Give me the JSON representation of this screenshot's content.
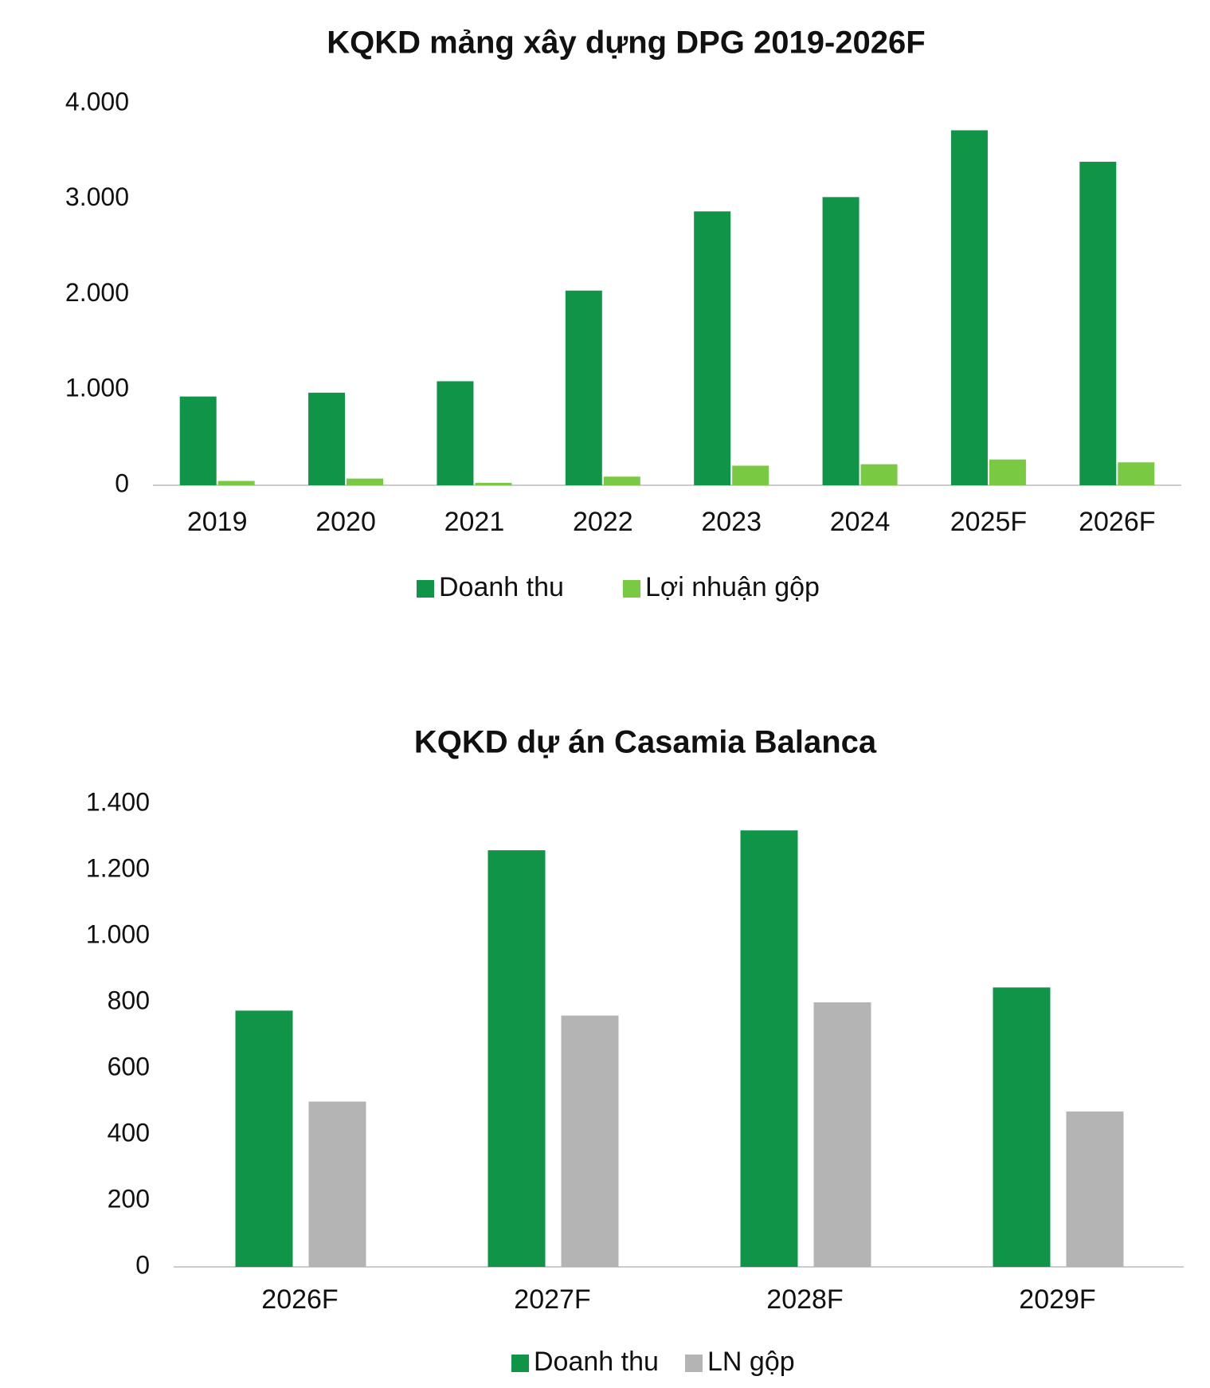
{
  "chart_data": [
    {
      "type": "bar",
      "title": "KQKD mảng xây dựng DPG 2019-2026F",
      "categories": [
        "2019",
        "2020",
        "2021",
        "2022",
        "2023",
        "2024",
        "2025F",
        "2026F"
      ],
      "series": [
        {
          "name": "Doanh thu",
          "color": "#109447",
          "values": [
            930,
            970,
            1090,
            2040,
            2870,
            3020,
            3720,
            3390
          ]
        },
        {
          "name": "Lợi nhuận gộp",
          "color": "#7ac943",
          "values": [
            45,
            70,
            25,
            90,
            205,
            220,
            270,
            240
          ]
        }
      ],
      "ylim": [
        0,
        4000
      ],
      "yticks": [
        0,
        {
          "value": 1000,
          "label": "1.000"
        },
        {
          "value": 2000,
          "label": "2.000"
        },
        {
          "value": 3000,
          "label": "3.000"
        },
        {
          "value": 4000,
          "label": "4.000"
        }
      ],
      "grid": false,
      "legend": "bottom"
    },
    {
      "type": "bar",
      "title": "KQKD dự án Casamia Balanca",
      "categories": [
        "2026F",
        "2027F",
        "2028F",
        "2029F"
      ],
      "series": [
        {
          "name": "Doanh thu",
          "color": "#109447",
          "values": [
            775,
            1260,
            1320,
            845
          ]
        },
        {
          "name": "LN gộp",
          "color": "#b4b4b4",
          "values": [
            500,
            760,
            800,
            470
          ]
        }
      ],
      "ylim": [
        0,
        1400
      ],
      "yticks": [
        0,
        200,
        400,
        600,
        800,
        {
          "value": 1000,
          "label": "1.000"
        },
        {
          "value": 1200,
          "label": "1.200"
        },
        {
          "value": 1400,
          "label": "1.400"
        }
      ],
      "grid": false,
      "legend": "bottom"
    }
  ]
}
